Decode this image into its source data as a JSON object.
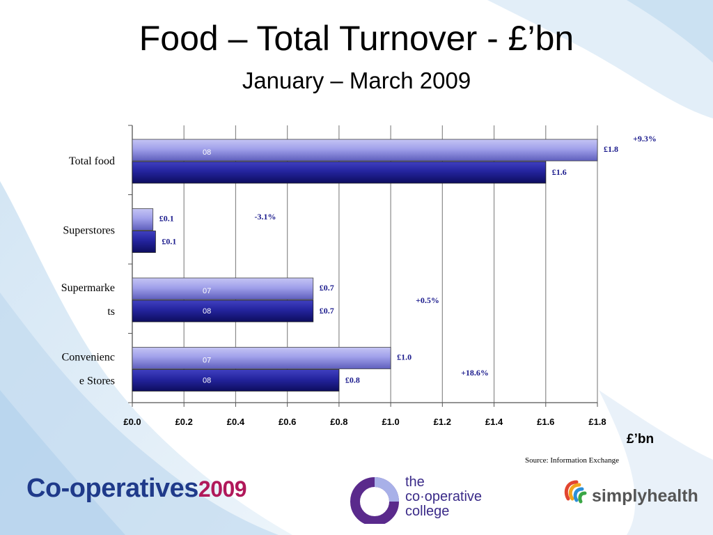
{
  "header": {
    "title": "Food – Total Turnover - £’bn",
    "subtitle": "January – March 2009"
  },
  "chart_data": {
    "type": "bar",
    "orientation": "horizontal",
    "categories": [
      {
        "lines": [
          "Total food"
        ]
      },
      {
        "lines": [
          "Superstores"
        ]
      },
      {
        "lines": [
          "Supermarke",
          "ts"
        ]
      },
      {
        "lines": [
          "Convenienc",
          "e Stores"
        ]
      }
    ],
    "series": [
      {
        "name": "07",
        "values": [
          1.8,
          0.08,
          0.7,
          1.0
        ],
        "color": "#9a9ae6"
      },
      {
        "name": "08",
        "values": [
          1.6,
          0.09,
          0.7,
          0.8
        ],
        "color": "#1f1f99"
      }
    ],
    "value_labels": {
      "07": [
        "£1.8",
        "£0.1",
        "£0.7",
        "£1.0"
      ],
      "08": [
        "£1.6",
        "£0.1",
        "£0.7",
        "£0.8"
      ]
    },
    "series_labels_on_bars": {
      "07": [
        "08",
        "",
        "07",
        "07"
      ],
      "08": [
        "",
        "",
        "08",
        "08"
      ]
    },
    "changes": [
      "+9.3%",
      "-3.1%",
      "+0.5%",
      "+18.6%"
    ],
    "xlim": [
      0,
      1.8
    ],
    "xticks": [
      0,
      0.2,
      0.4,
      0.6,
      0.8,
      1.0,
      1.2,
      1.4,
      1.6,
      1.8
    ],
    "xtick_labels": [
      "£0.0",
      "£0.2",
      "£0.4",
      "£0.6",
      "£0.8",
      "£1.0",
      "£1.2",
      "£1.4",
      "£1.6",
      "£1.8"
    ],
    "xlabel": "£’bn",
    "grid": true,
    "legend": "none"
  },
  "footer": {
    "source": "Source: Information Exchange",
    "logo_coops": "Co-operatives",
    "logo_coops_year": "2009",
    "logo_college_lines": [
      "the",
      "co·operative",
      "college"
    ],
    "logo_simply": "simplyhealth"
  }
}
